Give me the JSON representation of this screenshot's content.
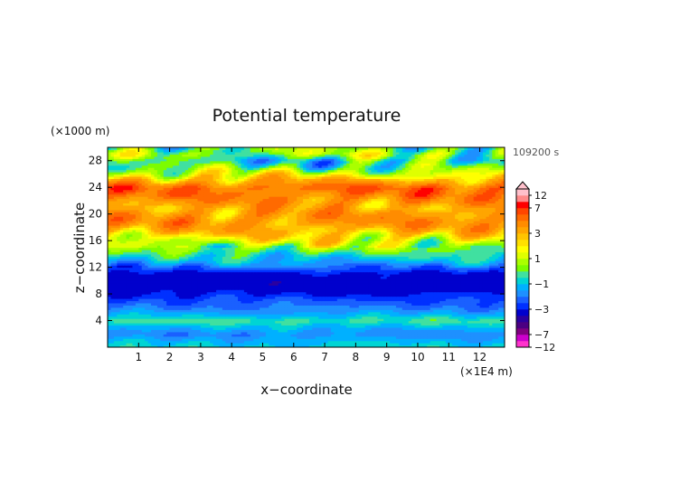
{
  "chart_data": {
    "type": "heatmap",
    "title": "Potential temperature",
    "xlabel": "x−coordinate",
    "ylabel": "z−coordinate",
    "x_unit": "(×1E4 m)",
    "y_unit": "(×1000 m)",
    "time_label": "109200 s",
    "xlim": [
      0,
      12.8
    ],
    "ylim": [
      0,
      30
    ],
    "x_ticks": [
      1,
      2,
      3,
      4,
      5,
      6,
      7,
      8,
      9,
      10,
      11,
      12
    ],
    "y_ticks": [
      4,
      8,
      12,
      16,
      20,
      24,
      28
    ],
    "colorbar": {
      "labels": [
        12,
        7,
        3,
        1,
        -1,
        -3,
        -7,
        -12
      ],
      "levels": [
        -12,
        -9,
        -7,
        -6,
        -5,
        -4,
        -3,
        -2.5,
        -2,
        -1.5,
        -1,
        -0.5,
        0,
        0.5,
        1,
        1.5,
        2,
        2.5,
        3,
        4,
        5,
        6,
        7,
        9,
        12
      ],
      "colors": [
        "#ff33cc",
        "#cc00cc",
        "#800080",
        "#4b0082",
        "#2a00a0",
        "#0000cd",
        "#0030ff",
        "#1a60ff",
        "#1e90ff",
        "#00b0ff",
        "#00d4d4",
        "#40e0a0",
        "#7cfc00",
        "#aaff00",
        "#dfff00",
        "#ffff00",
        "#ffe000",
        "#ffc400",
        "#ffa500",
        "#ff8c00",
        "#ff6a00",
        "#ff4500",
        "#ff0000",
        "#ff8a8a",
        "#ffc0cb"
      ]
    },
    "profile_z": [
      0,
      1,
      2,
      3,
      4,
      5,
      6,
      7,
      8,
      9,
      10,
      11,
      12,
      13,
      14,
      15,
      16,
      17,
      18,
      19,
      20,
      21,
      22,
      23,
      24,
      25,
      26,
      27,
      28,
      29,
      30
    ],
    "profile_value": [
      -0.8,
      -1.2,
      -1.8,
      -1.2,
      -0.3,
      -1.3,
      -2.0,
      -2.4,
      -3.0,
      -3.5,
      -3.6,
      -3.3,
      -2.2,
      -1.2,
      -0.5,
      0.5,
      1.5,
      2.5,
      3.5,
      4.2,
      4.0,
      3.5,
      4.2,
      5.0,
      5.5,
      3.5,
      1.5,
      0.0,
      -0.8,
      0.6,
      0.2
    ]
  }
}
